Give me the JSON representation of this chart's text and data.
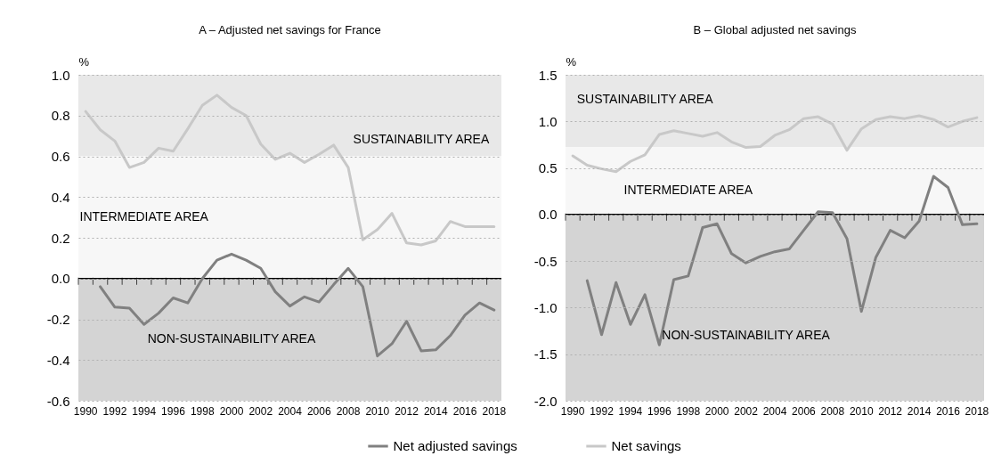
{
  "chart_data": [
    {
      "type": "line",
      "title": "A – Adjusted net savings for France",
      "ylabel": "%",
      "categories": [
        "1990",
        null,
        "1992",
        null,
        "1994",
        null,
        "1996",
        null,
        "1998",
        null,
        "2000",
        null,
        "2002",
        null,
        "2004",
        null,
        "2006",
        null,
        "2008",
        null,
        "2010",
        null,
        "2012",
        null,
        "2014",
        null,
        "2016",
        null,
        "2018"
      ],
      "series": [
        {
          "name": "Net adjusted savings",
          "color": "#808080",
          "values": [
            null,
            -0.04,
            -0.14,
            -0.145,
            -0.225,
            -0.17,
            -0.095,
            -0.12,
            0.0,
            0.09,
            0.12,
            0.09,
            0.05,
            -0.065,
            -0.135,
            -0.09,
            -0.115,
            -0.03,
            0.05,
            -0.04,
            -0.38,
            -0.32,
            -0.21,
            -0.355,
            -0.35,
            -0.28,
            -0.18,
            -0.12,
            -0.155
          ]
        },
        {
          "name": "Net savings",
          "color": "#c8c8c8",
          "values": [
            0.82,
            0.73,
            0.675,
            0.545,
            0.57,
            0.64,
            0.625,
            0.735,
            0.85,
            0.9,
            0.84,
            0.8,
            0.66,
            0.585,
            0.615,
            0.57,
            0.61,
            0.655,
            0.545,
            0.19,
            0.24,
            0.32,
            0.175,
            0.165,
            0.185,
            0.28,
            0.255,
            0.255,
            0.255
          ]
        }
      ],
      "ylim": [
        -0.6,
        1.0
      ],
      "yticks": [
        {
          "value": -0.6,
          "label": "-0.6"
        },
        {
          "value": -0.4,
          "label": "-0.4"
        },
        {
          "value": -0.2,
          "label": "-0.2"
        },
        {
          "value": 0,
          "label": "0.0"
        },
        {
          "value": 0.2,
          "label": "0.2"
        },
        {
          "value": 0.4,
          "label": "0.4"
        },
        {
          "value": 0.6,
          "label": "0.6"
        },
        {
          "value": 0.8,
          "label": "0.8"
        },
        {
          "value": 1.0,
          "label": "1.0"
        }
      ],
      "bands": [
        {
          "axis": "y",
          "from": 0.6,
          "to": 1.0,
          "color": "#e8e8e8"
        },
        {
          "axis": "y",
          "from": 0,
          "to": 0.6,
          "color": "#f7f7f7"
        },
        {
          "axis": "y",
          "from": -0.6,
          "to": 0,
          "color": "#d4d4d4"
        }
      ],
      "ref_lines": [
        {
          "axis": "y",
          "value": 0,
          "color": "#000000"
        }
      ],
      "annotations": [
        "SUSTAINABILITY AREA",
        "INTERMEDIATE AREA",
        "NON-SUSTAINABILITY AREA"
      ],
      "grid": "y",
      "legend": "bottom",
      "marker": "none",
      "line_style": "solid"
    },
    {
      "type": "line",
      "title": "B – Global adjusted net savings",
      "ylabel": "%",
      "categories": [
        "1990",
        null,
        "1992",
        null,
        "1994",
        null,
        "1996",
        null,
        "1998",
        null,
        "2000",
        null,
        "2002",
        null,
        "2004",
        null,
        "2006",
        null,
        "2008",
        null,
        "2010",
        null,
        "2012",
        null,
        "2014",
        null,
        "2016",
        null,
        "2018"
      ],
      "series": [
        {
          "color": "#808080",
          "values": [
            null,
            -0.71,
            -1.29,
            -0.73,
            -1.18,
            -0.86,
            -1.4,
            -0.7,
            -0.66,
            -0.14,
            -0.1,
            -0.42,
            -0.52,
            -0.45,
            -0.4,
            -0.37,
            -0.17,
            0.03,
            0.02,
            -0.26,
            -1.04,
            -0.46,
            -0.17,
            -0.25,
            -0.07,
            0.41,
            0.29,
            -0.11,
            -0.1
          ]
        },
        {
          "color": "#c8c8c8",
          "values": [
            0.63,
            0.53,
            0.49,
            0.46,
            0.57,
            0.64,
            0.86,
            0.9,
            0.87,
            0.84,
            0.88,
            0.78,
            0.72,
            0.73,
            0.85,
            0.91,
            1.03,
            1.05,
            0.97,
            0.69,
            0.92,
            1.02,
            1.05,
            1.03,
            1.06,
            1.02,
            0.94,
            1.0,
            1.04
          ]
        }
      ],
      "ylim": [
        -2.0,
        1.5
      ],
      "yticks": [
        {
          "value": -2.0,
          "label": "-2.0"
        },
        {
          "value": -1.5,
          "label": "-1.5"
        },
        {
          "value": -1.0,
          "label": "-1.0"
        },
        {
          "value": -0.5,
          "label": "-0.5"
        },
        {
          "value": 0,
          "label": "0.0"
        },
        {
          "value": 0.5,
          "label": "0.5"
        },
        {
          "value": 1.0,
          "label": "1.0"
        },
        {
          "value": 1.5,
          "label": "1.5"
        }
      ],
      "bands": [
        {
          "axis": "y",
          "from": 0.725,
          "to": 1.5,
          "color": "#e8e8e8"
        },
        {
          "axis": "y",
          "from": 0,
          "to": 0.725,
          "color": "#f7f7f7"
        },
        {
          "axis": "y",
          "from": -2.0,
          "to": 0,
          "color": "#d4d4d4"
        }
      ],
      "ref_lines": [
        {
          "axis": "y",
          "value": 0,
          "color": "#000000"
        }
      ],
      "annotations": [
        "SUSTAINABILITY AREA",
        "INTERMEDIATE AREA",
        "NON-SUSTAINABILITY AREA"
      ],
      "grid": "y",
      "marker": "none",
      "line_style": "solid"
    }
  ]
}
